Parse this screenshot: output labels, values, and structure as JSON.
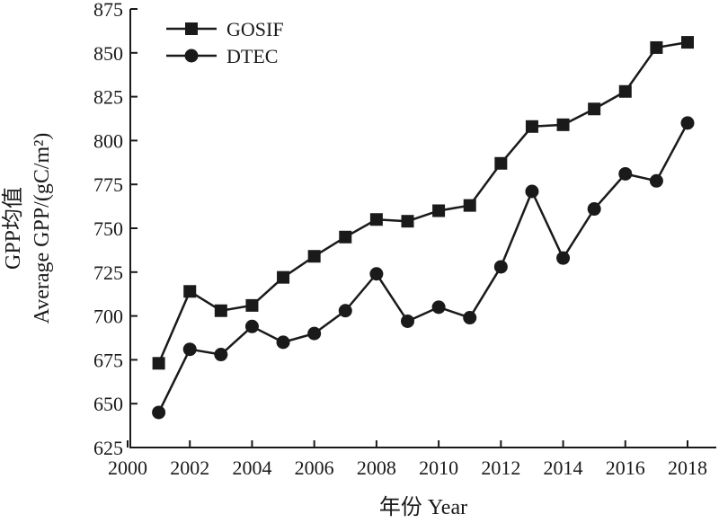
{
  "chart_data": {
    "type": "line",
    "xlabel": "年份 Year",
    "ylabel_line1": "GPP均值",
    "ylabel_line2": "Average GPP/(gC/m²)",
    "xlim": [
      2000,
      2018
    ],
    "ylim": [
      625,
      875
    ],
    "x_ticks": [
      "2000",
      "2002",
      "2004",
      "2006",
      "2008",
      "2010",
      "2012",
      "2014",
      "2016",
      "2018"
    ],
    "y_ticks": [
      "625",
      "650",
      "675",
      "700",
      "725",
      "750",
      "775",
      "800",
      "825",
      "850",
      "875"
    ],
    "legend_position": "top-left",
    "x": [
      2001,
      2002,
      2003,
      2004,
      2005,
      2006,
      2007,
      2008,
      2009,
      2010,
      2011,
      2012,
      2013,
      2014,
      2015,
      2016,
      2017,
      2018
    ],
    "series": [
      {
        "name": "GOSIF",
        "marker": "square",
        "values": [
          673,
          714,
          703,
          706,
          722,
          734,
          745,
          755,
          754,
          760,
          763,
          787,
          808,
          809,
          818,
          828,
          853,
          856
        ]
      },
      {
        "name": "DTEC",
        "marker": "circle",
        "values": [
          645,
          681,
          678,
          694,
          685,
          690,
          703,
          724,
          697,
          705,
          699,
          728,
          771,
          733,
          761,
          781,
          777,
          810
        ]
      }
    ]
  }
}
